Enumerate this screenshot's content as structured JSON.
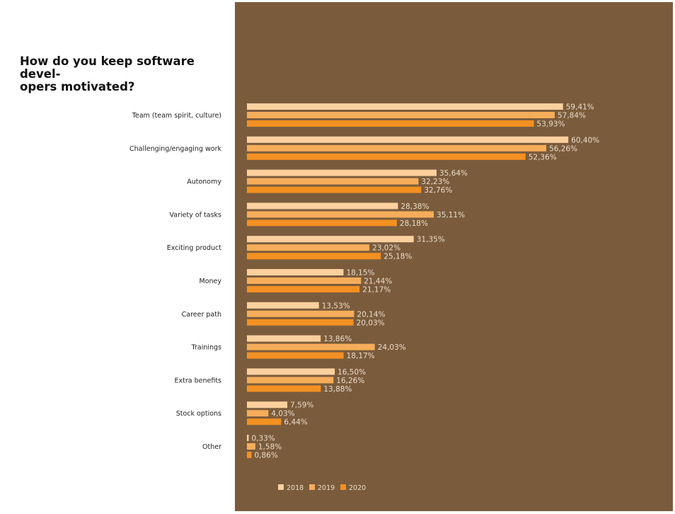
{
  "title": "How do you keep software developers motivated?",
  "title_display": "How do you keep software devel-\nopers motivated?",
  "colors": {
    "panel_background": "#7a5c3d",
    "series": [
      "#fbd09e",
      "#f6ad5a",
      "#f39022"
    ],
    "value_label": "#ecdcc8"
  },
  "chart_data": {
    "type": "bar",
    "orientation": "horizontal",
    "title": "How do you keep software developers motivated?",
    "xlabel": "",
    "ylabel": "",
    "xlim": [
      0,
      65
    ],
    "grid": false,
    "legend_position": "bottom",
    "value_suffix": "%",
    "decimal_separator": ",",
    "categories": [
      "Team (team spirit, culture)",
      "Challenging/engaging work",
      "Autonomy",
      "Variety of tasks",
      "Exciting product",
      "Money",
      "Career path",
      "Trainings",
      "Extra benefits",
      "Stock options",
      "Other"
    ],
    "series": [
      {
        "name": "2018",
        "values": [
          59.41,
          60.4,
          35.64,
          28.38,
          31.35,
          18.15,
          13.53,
          13.86,
          16.5,
          7.59,
          0.33
        ]
      },
      {
        "name": "2019",
        "values": [
          57.84,
          56.26,
          32.23,
          35.11,
          23.02,
          21.44,
          20.14,
          24.03,
          16.26,
          4.03,
          1.58
        ]
      },
      {
        "name": "2020",
        "values": [
          53.93,
          52.36,
          32.76,
          28.18,
          25.18,
          21.17,
          20.03,
          18.17,
          13.88,
          6.44,
          0.86
        ]
      }
    ]
  }
}
